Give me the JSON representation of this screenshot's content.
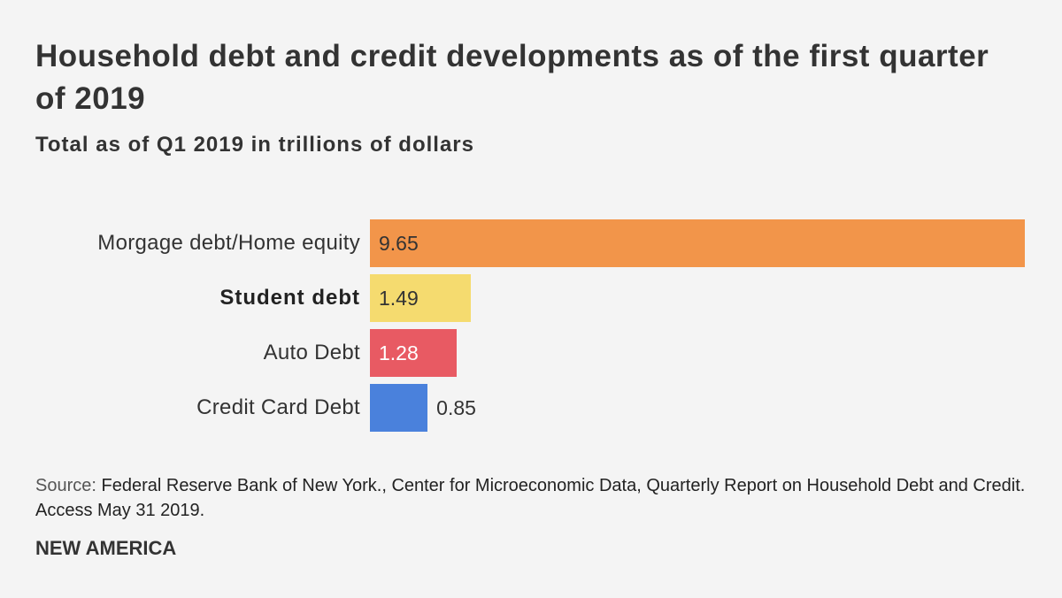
{
  "chart_data": {
    "type": "bar",
    "orientation": "horizontal",
    "title": "Household debt and credit developments as of the first quarter of 2019",
    "subtitle": "Total as of Q1 2019 in trillions of dollars",
    "categories": [
      "Morgage debt/Home equity",
      "Student debt",
      "Auto Debt",
      "Credit Card Debt"
    ],
    "values": [
      9.65,
      1.49,
      1.28,
      0.85
    ],
    "value_labels": [
      "9.65",
      "1.49",
      "1.28",
      "0.85"
    ],
    "colors": [
      "#f2954a",
      "#f5db6f",
      "#e85a63",
      "#4a81dc"
    ],
    "label_colors": [
      "#333333",
      "#333333",
      "#ffffff",
      "#333333"
    ],
    "highlighted_category": "Student debt",
    "xlim": [
      0,
      9.65
    ],
    "xlabel": "",
    "ylabel": "",
    "grid": false
  },
  "source": {
    "label": "Source:",
    "text": "Federal Reserve Bank of New York., Center for Microeconomic Data, Quarterly Report on Household Debt and Credit. Access May 31 2019."
  },
  "brand": "NEW AMERICA"
}
